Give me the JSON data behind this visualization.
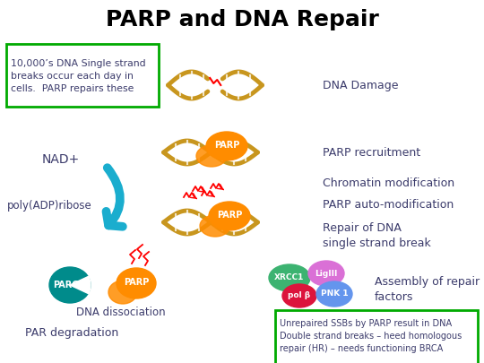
{
  "title": "PARP and DNA Repair",
  "title_fontsize": 18,
  "title_color": "#000000",
  "bg_color": "#ffffff",
  "text_color_dark": "#3B3B6B",
  "box1_text": "10,000’s DNA Single strand\nbreaks occur each day in\ncells.  PARP repairs these",
  "box1_color": "#00AA00",
  "box2_text": "Unrepaired SSBs by PARP result in DNA\nDouble strand breaks – heed homologous\nrepair (HR) – needs functioning BRCA",
  "box2_color": "#00AA00",
  "label_dna_damage": "DNA Damage",
  "label_parp_recruit": "PARP recruitment",
  "label_chromatin": "Chromatin modification",
  "label_parp_auto": "PARP auto-modification",
  "label_repair_dna": "Repair of DNA\nsingle strand break",
  "label_assembly": "Assembly of repair\nfactors",
  "label_nad": "NAD+",
  "label_poly": "poly(ADP)ribose",
  "label_par_deg": "PAR degradation",
  "label_dna_dis": "DNA dissociation",
  "label_fontsize": 9,
  "small_fontsize": 7.5,
  "arrow_color": "#1AADCE",
  "parp_color": "#FF8C00",
  "parg_color": "#008B8B",
  "xrcc1_color": "#3CB371",
  "ligiii_color": "#DA70D6",
  "polb_color": "#DC143C",
  "pnk1_color": "#6495ED",
  "dna_color": "#C8961E"
}
